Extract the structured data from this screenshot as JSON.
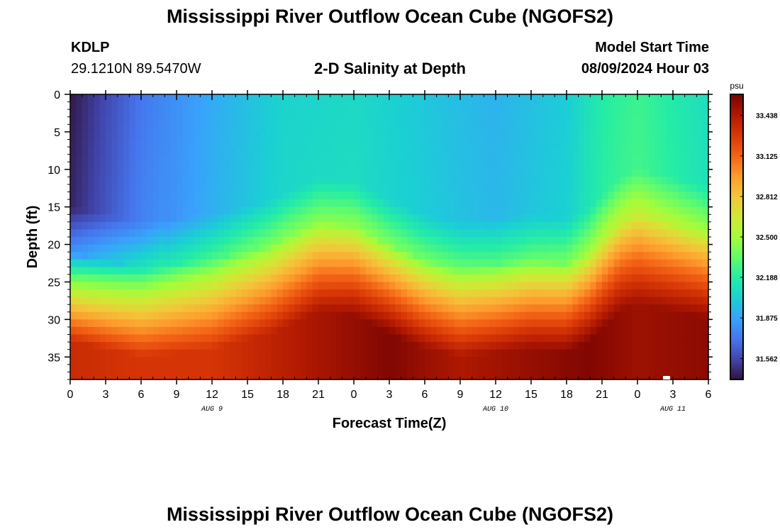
{
  "header": {
    "title": "Mississippi River Outflow Ocean Cube (NGOFS2)",
    "station": "KDLP",
    "coords": "29.1210N  89.5470W",
    "subtitle": "2-D Salinity at Depth",
    "model_start_label": "Model Start Time",
    "model_start_value": "08/09/2024 Hour 03"
  },
  "footer": {
    "title": "Mississippi River Outflow Ocean Cube (NGOFS2)"
  },
  "colors": {
    "scale": [
      "#30123b",
      "#4145ab",
      "#4675ed",
      "#39a2fc",
      "#1bcfd4",
      "#24eca6",
      "#61fc6c",
      "#a4fc3b",
      "#d1e834",
      "#f3c63a",
      "#fe9b2d",
      "#f36315",
      "#d93806",
      "#b11901",
      "#7a0403"
    ]
  },
  "chart_data": {
    "type": "heatmap",
    "title": "2-D Salinity at Depth",
    "xlabel": "Forecast Time(Z)",
    "ylabel": "Depth (ft)",
    "xlim": [
      0,
      54
    ],
    "ylim": [
      0,
      38
    ],
    "x_ticks": [
      0,
      3,
      6,
      9,
      12,
      15,
      18,
      21,
      24,
      27,
      30,
      33,
      36,
      39,
      42,
      45,
      48,
      51,
      54
    ],
    "x_tick_labels": [
      "0",
      "3",
      "6",
      "9",
      "12",
      "15",
      "18",
      "21",
      "0",
      "3",
      "6",
      "9",
      "12",
      "15",
      "18",
      "21",
      "0",
      "3",
      "6"
    ],
    "y_ticks": [
      0,
      5,
      10,
      15,
      20,
      25,
      30,
      35
    ],
    "y_tick_labels": [
      "0",
      "5",
      "10",
      "15",
      "20",
      "25",
      "30",
      "35"
    ],
    "day_labels": [
      {
        "x": 12,
        "label": "AUG 9"
      },
      {
        "x": 36,
        "label": "AUG 10"
      },
      {
        "x": 51,
        "label": "AUG 11"
      }
    ],
    "colorbar": {
      "unit": "psu",
      "min": 31.4,
      "max": 33.6,
      "tick_values": [
        33.438,
        33.125,
        32.812,
        32.5,
        32.188,
        31.875,
        31.562
      ],
      "tick_labels": [
        "33.438",
        "33.125",
        "32.812",
        "32.500",
        "32.188",
        "31.875",
        "31.562"
      ]
    },
    "halocline_depth": [
      {
        "t": 0,
        "d": 21
      },
      {
        "t": 6,
        "d": 23
      },
      {
        "t": 12,
        "d": 22
      },
      {
        "t": 17,
        "d": 20
      },
      {
        "t": 21,
        "d": 17
      },
      {
        "t": 24,
        "d": 17.5
      },
      {
        "t": 27,
        "d": 20
      },
      {
        "t": 30,
        "d": 22
      },
      {
        "t": 33,
        "d": 23
      },
      {
        "t": 36,
        "d": 22.5
      },
      {
        "t": 39,
        "d": 22
      },
      {
        "t": 42,
        "d": 22.5
      },
      {
        "t": 44,
        "d": 21
      },
      {
        "t": 46.5,
        "d": 17
      },
      {
        "t": 48,
        "d": 16
      },
      {
        "t": 51,
        "d": 17
      },
      {
        "t": 54,
        "d": 18
      }
    ],
    "surface_salinity": [
      {
        "t": 0,
        "v": 31.42
      },
      {
        "t": 6,
        "v": 31.72
      },
      {
        "t": 12,
        "v": 31.9
      },
      {
        "t": 18,
        "v": 32.05
      },
      {
        "t": 24,
        "v": 32.08
      },
      {
        "t": 30,
        "v": 32.0
      },
      {
        "t": 36,
        "v": 31.93
      },
      {
        "t": 42,
        "v": 32.02
      },
      {
        "t": 45,
        "v": 32.18
      },
      {
        "t": 48,
        "v": 32.25
      },
      {
        "t": 54,
        "v": 32.1
      }
    ],
    "bottom_salinity": [
      {
        "t": 0,
        "v": 33.35
      },
      {
        "t": 6,
        "v": 33.3
      },
      {
        "t": 12,
        "v": 33.3
      },
      {
        "t": 20,
        "v": 33.45
      },
      {
        "t": 27,
        "v": 33.58
      },
      {
        "t": 33,
        "v": 33.45
      },
      {
        "t": 39,
        "v": 33.52
      },
      {
        "t": 44,
        "v": 33.58
      },
      {
        "t": 48,
        "v": 33.5
      },
      {
        "t": 54,
        "v": 33.55
      }
    ]
  }
}
